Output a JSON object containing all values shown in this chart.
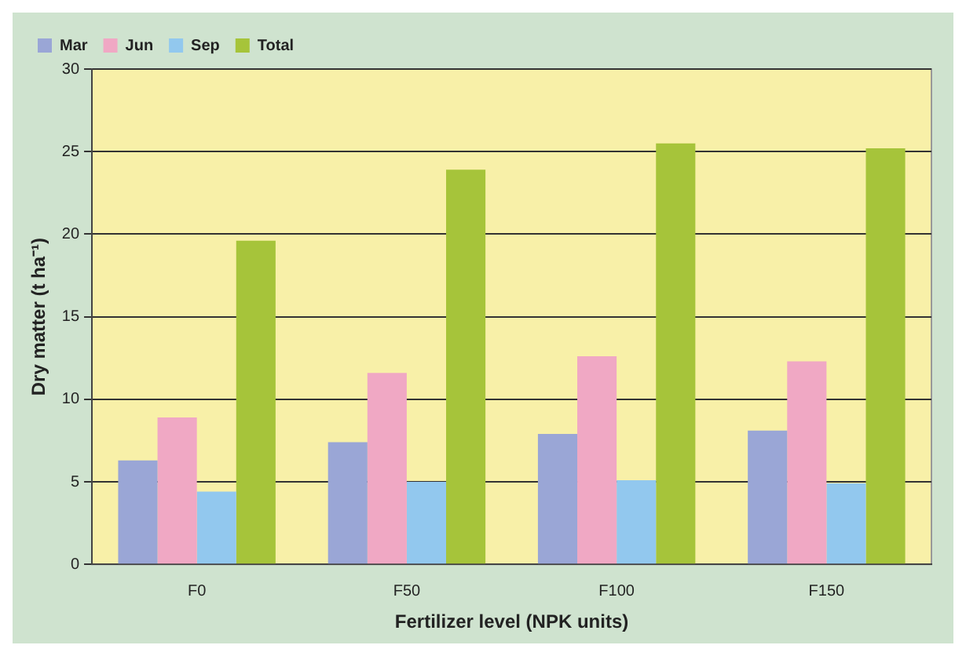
{
  "chart_data": {
    "type": "bar",
    "xlabel": "Fertilizer level (NPK units)",
    "ylabel": "Dry matter (t ha⁻¹)",
    "categories": [
      "F0",
      "F50",
      "F100",
      "F150"
    ],
    "series": [
      {
        "name": "Mar",
        "color": "#9aa6d6",
        "values": [
          6.3,
          7.4,
          7.9,
          8.1
        ]
      },
      {
        "name": "Jun",
        "color": "#f0a8c4",
        "values": [
          8.9,
          11.6,
          12.6,
          12.3
        ]
      },
      {
        "name": "Sep",
        "color": "#92c8ee",
        "values": [
          4.4,
          5.0,
          5.1,
          4.9
        ]
      },
      {
        "name": "Total",
        "color": "#a6c43a",
        "values": [
          19.6,
          23.9,
          25.5,
          25.2
        ]
      }
    ],
    "ylim": [
      0,
      30
    ],
    "yticks": [
      0,
      5,
      10,
      15,
      20,
      25,
      30
    ],
    "grid": "y",
    "legend": "top left"
  }
}
